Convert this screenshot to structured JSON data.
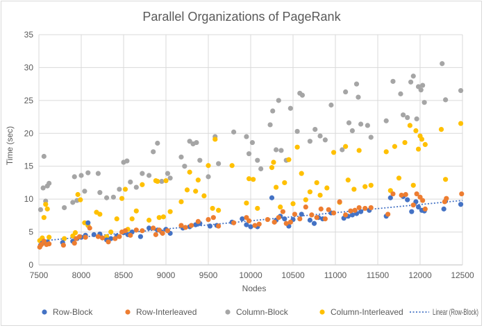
{
  "chart_data": {
    "type": "scatter",
    "title": "Parallel Organizations of PageRank",
    "xlabel": "Nodes",
    "ylabel": "Time (sec)",
    "xlim": [
      7500,
      12500
    ],
    "ylim": [
      0,
      35
    ],
    "xticks": [
      7500,
      8000,
      8500,
      9000,
      9500,
      10000,
      10500,
      11000,
      11500,
      12000,
      12500
    ],
    "yticks": [
      0,
      5,
      10,
      15,
      20,
      25,
      30,
      35
    ],
    "grid": true,
    "legend_position": "bottom",
    "colors": {
      "row_block": "#4472c4",
      "row_interleaved": "#ed7d31",
      "column_block": "#a5a5a5",
      "column_interleaved": "#ffc000",
      "trendline": "#4472c4"
    },
    "series": [
      {
        "name": "Row-Block",
        "points": [
          [
            7520,
            3.0
          ],
          [
            7540,
            3.3
          ],
          [
            7580,
            3.4
          ],
          [
            7600,
            3.5
          ],
          [
            7780,
            3.4
          ],
          [
            7900,
            3.6
          ],
          [
            7950,
            4.0
          ],
          [
            8000,
            4.2
          ],
          [
            8050,
            4.5
          ],
          [
            8080,
            6.4
          ],
          [
            8150,
            4.6
          ],
          [
            8220,
            4.7
          ],
          [
            8300,
            3.8
          ],
          [
            8350,
            4.0
          ],
          [
            8420,
            4.4
          ],
          [
            8500,
            4.9
          ],
          [
            8550,
            4.6
          ],
          [
            8600,
            5.0
          ],
          [
            8700,
            4.3
          ],
          [
            8800,
            5.6
          ],
          [
            8900,
            5.3
          ],
          [
            8950,
            5.0
          ],
          [
            9000,
            5.4
          ],
          [
            9050,
            4.8
          ],
          [
            9200,
            5.6
          ],
          [
            9280,
            5.8
          ],
          [
            9350,
            6.1
          ],
          [
            9400,
            6.3
          ],
          [
            9520,
            5.9
          ],
          [
            9600,
            6.0
          ],
          [
            9780,
            6.5
          ],
          [
            9900,
            7.0
          ],
          [
            9950,
            6.1
          ],
          [
            10000,
            5.8
          ],
          [
            10080,
            5.8
          ],
          [
            10250,
            10.2
          ],
          [
            10300,
            6.8
          ],
          [
            10350,
            7.4
          ],
          [
            10400,
            7.0
          ],
          [
            10450,
            5.9
          ],
          [
            10500,
            6.9
          ],
          [
            10600,
            7.7
          ],
          [
            10700,
            6.8
          ],
          [
            10750,
            6.3
          ],
          [
            10800,
            7.2
          ],
          [
            10850,
            7.0
          ],
          [
            10950,
            7.9
          ],
          [
            11100,
            7.1
          ],
          [
            11150,
            7.4
          ],
          [
            11200,
            7.6
          ],
          [
            11250,
            7.8
          ],
          [
            11300,
            8.1
          ],
          [
            11400,
            8.3
          ],
          [
            11600,
            7.4
          ],
          [
            11650,
            10.2
          ],
          [
            11800,
            10.4
          ],
          [
            11850,
            9.9
          ],
          [
            11900,
            8.1
          ],
          [
            11950,
            9.6
          ],
          [
            11980,
            8.8
          ],
          [
            12020,
            8.3
          ],
          [
            12050,
            8.2
          ],
          [
            12280,
            8.5
          ],
          [
            12300,
            9.7
          ],
          [
            12480,
            9.2
          ]
        ]
      },
      {
        "name": "Row-Interleaved",
        "points": [
          [
            7510,
            2.7
          ],
          [
            7530,
            3.1
          ],
          [
            7560,
            3.6
          ],
          [
            7590,
            3.1
          ],
          [
            7620,
            3.2
          ],
          [
            7790,
            3.0
          ],
          [
            7920,
            3.3
          ],
          [
            7940,
            4.0
          ],
          [
            7980,
            4.3
          ],
          [
            8050,
            4.2
          ],
          [
            8100,
            5.6
          ],
          [
            8200,
            4.3
          ],
          [
            8250,
            4.1
          ],
          [
            8320,
            3.5
          ],
          [
            8400,
            4.0
          ],
          [
            8450,
            4.3
          ],
          [
            8480,
            5.0
          ],
          [
            8520,
            5.2
          ],
          [
            8580,
            4.5
          ],
          [
            8650,
            5.3
          ],
          [
            8720,
            5.2
          ],
          [
            8850,
            5.6
          ],
          [
            8880,
            4.6
          ],
          [
            8920,
            5.3
          ],
          [
            8960,
            4.8
          ],
          [
            9020,
            5.2
          ],
          [
            9180,
            6.0
          ],
          [
            9230,
            5.7
          ],
          [
            9300,
            6.0
          ],
          [
            9380,
            6.6
          ],
          [
            9500,
            6.9
          ],
          [
            9560,
            7.2
          ],
          [
            9620,
            5.9
          ],
          [
            9800,
            6.4
          ],
          [
            9950,
            7.2
          ],
          [
            9980,
            6.7
          ],
          [
            10050,
            6.0
          ],
          [
            10100,
            6.2
          ],
          [
            10200,
            6.9
          ],
          [
            10280,
            6.5
          ],
          [
            10330,
            7.2
          ],
          [
            10380,
            8.1
          ],
          [
            10420,
            6.3
          ],
          [
            10470,
            6.5
          ],
          [
            10520,
            7.7
          ],
          [
            10580,
            7.0
          ],
          [
            10650,
            8.8
          ],
          [
            10720,
            7.6
          ],
          [
            10780,
            7.2
          ],
          [
            10830,
            8.5
          ],
          [
            10880,
            7.0
          ],
          [
            10920,
            8.4
          ],
          [
            10980,
            7.9
          ],
          [
            11050,
            9.6
          ],
          [
            11120,
            7.6
          ],
          [
            11180,
            8.2
          ],
          [
            11230,
            8.3
          ],
          [
            11280,
            8.7
          ],
          [
            11350,
            8.6
          ],
          [
            11420,
            8.7
          ],
          [
            11620,
            7.7
          ],
          [
            11680,
            10.8
          ],
          [
            11780,
            10.6
          ],
          [
            11830,
            10.7
          ],
          [
            11920,
            9.1
          ],
          [
            11960,
            10.8
          ],
          [
            12000,
            10.3
          ],
          [
            12030,
            9.8
          ],
          [
            12060,
            8.5
          ],
          [
            12290,
            9.6
          ],
          [
            12310,
            10.1
          ],
          [
            12490,
            10.8
          ]
        ]
      },
      {
        "name": "Column-Block",
        "points": [
          [
            7520,
            8.4
          ],
          [
            7550,
            11.7
          ],
          [
            7560,
            16.5
          ],
          [
            7580,
            9.7
          ],
          [
            7600,
            12.0
          ],
          [
            7620,
            12.4
          ],
          [
            7800,
            8.7
          ],
          [
            7900,
            9.5
          ],
          [
            7920,
            13.4
          ],
          [
            7950,
            9.8
          ],
          [
            8000,
            13.6
          ],
          [
            8040,
            11.2
          ],
          [
            8080,
            14.0
          ],
          [
            8200,
            13.9
          ],
          [
            8220,
            11.0
          ],
          [
            8300,
            10.2
          ],
          [
            8380,
            10.3
          ],
          [
            8450,
            11.5
          ],
          [
            8500,
            15.6
          ],
          [
            8540,
            15.8
          ],
          [
            8580,
            12.6
          ],
          [
            8650,
            11.8
          ],
          [
            8720,
            13.9
          ],
          [
            8800,
            13.6
          ],
          [
            8850,
            17.2
          ],
          [
            8900,
            18.5
          ],
          [
            8950,
            12.7
          ],
          [
            9020,
            13.9
          ],
          [
            9050,
            13.2
          ],
          [
            9180,
            16.4
          ],
          [
            9220,
            15.0
          ],
          [
            9280,
            18.8
          ],
          [
            9320,
            18.4
          ],
          [
            9360,
            18.6
          ],
          [
            9400,
            15.9
          ],
          [
            9500,
            13.4
          ],
          [
            9580,
            19.5
          ],
          [
            9620,
            15.4
          ],
          [
            9800,
            20.2
          ],
          [
            9950,
            19.5
          ],
          [
            9980,
            16.9
          ],
          [
            10020,
            18.6
          ],
          [
            10080,
            15.9
          ],
          [
            10120,
            14.6
          ],
          [
            10230,
            21.3
          ],
          [
            10260,
            23.4
          ],
          [
            10300,
            17.5
          ],
          [
            10330,
            25.0
          ],
          [
            10360,
            17.4
          ],
          [
            10420,
            15.9
          ],
          [
            10470,
            23.8
          ],
          [
            10550,
            20.3
          ],
          [
            10580,
            26.1
          ],
          [
            10610,
            25.8
          ],
          [
            10700,
            18.8
          ],
          [
            10760,
            20.6
          ],
          [
            10820,
            19.6
          ],
          [
            10880,
            19.0
          ],
          [
            10950,
            24.3
          ],
          [
            11080,
            17.5
          ],
          [
            11120,
            26.3
          ],
          [
            11160,
            21.6
          ],
          [
            11200,
            20.4
          ],
          [
            11250,
            27.5
          ],
          [
            11270,
            25.5
          ],
          [
            11300,
            21.4
          ],
          [
            11380,
            21.2
          ],
          [
            11420,
            19.4
          ],
          [
            11600,
            21.9
          ],
          [
            11680,
            27.9
          ],
          [
            11770,
            26.0
          ],
          [
            11800,
            22.8
          ],
          [
            11850,
            22.4
          ],
          [
            11890,
            27.8
          ],
          [
            11920,
            28.7
          ],
          [
            11960,
            22.2
          ],
          [
            11980,
            27.1
          ],
          [
            12010,
            26.6
          ],
          [
            12030,
            27.3
          ],
          [
            12050,
            24.7
          ],
          [
            12260,
            30.6
          ],
          [
            12300,
            25.1
          ],
          [
            12480,
            26.5
          ]
        ]
      },
      {
        "name": "Column-Interleaved",
        "points": [
          [
            7510,
            3.7
          ],
          [
            7540,
            4.1
          ],
          [
            7560,
            7.2
          ],
          [
            7580,
            9.2
          ],
          [
            7600,
            8.5
          ],
          [
            7620,
            4.2
          ],
          [
            7800,
            4.0
          ],
          [
            7900,
            4.4
          ],
          [
            7930,
            4.9
          ],
          [
            7960,
            10.7
          ],
          [
            7990,
            9.9
          ],
          [
            8040,
            6.4
          ],
          [
            8080,
            6.0
          ],
          [
            8180,
            8.0
          ],
          [
            8220,
            7.7
          ],
          [
            8300,
            4.3
          ],
          [
            8350,
            5.0
          ],
          [
            8420,
            7.0
          ],
          [
            8480,
            10.1
          ],
          [
            8520,
            11.5
          ],
          [
            8550,
            5.4
          ],
          [
            8600,
            7.0
          ],
          [
            8650,
            8.2
          ],
          [
            8720,
            12.2
          ],
          [
            8800,
            6.8
          ],
          [
            8880,
            12.8
          ],
          [
            8900,
            12.7
          ],
          [
            8920,
            7.2
          ],
          [
            8970,
            7.3
          ],
          [
            9000,
            12.8
          ],
          [
            9050,
            8.1
          ],
          [
            9180,
            9.6
          ],
          [
            9250,
            11.4
          ],
          [
            9280,
            14.1
          ],
          [
            9350,
            11.2
          ],
          [
            9380,
            12.9
          ],
          [
            9450,
            10.5
          ],
          [
            9500,
            15.1
          ],
          [
            9550,
            8.6
          ],
          [
            9580,
            19.1
          ],
          [
            9620,
            8.3
          ],
          [
            9780,
            15.1
          ],
          [
            9950,
            9.4
          ],
          [
            9980,
            13.1
          ],
          [
            10030,
            13.0
          ],
          [
            10080,
            8.6
          ],
          [
            10250,
            14.8
          ],
          [
            10270,
            15.6
          ],
          [
            10300,
            11.8
          ],
          [
            10350,
            8.8
          ],
          [
            10400,
            12.5
          ],
          [
            10450,
            16.0
          ],
          [
            10500,
            9.3
          ],
          [
            10550,
            17.9
          ],
          [
            10600,
            13.9
          ],
          [
            10650,
            9.9
          ],
          [
            10700,
            11.1
          ],
          [
            10780,
            12.5
          ],
          [
            10820,
            10.6
          ],
          [
            10900,
            11.7
          ],
          [
            10980,
            17.1
          ],
          [
            11050,
            9.5
          ],
          [
            11120,
            18.0
          ],
          [
            11150,
            12.9
          ],
          [
            11220,
            11.5
          ],
          [
            11280,
            17.4
          ],
          [
            11350,
            11.9
          ],
          [
            11420,
            12.1
          ],
          [
            11600,
            17.2
          ],
          [
            11650,
            11.3
          ],
          [
            11700,
            18.0
          ],
          [
            11750,
            13.2
          ],
          [
            11820,
            18.6
          ],
          [
            11880,
            21.2
          ],
          [
            11920,
            12.1
          ],
          [
            11950,
            20.4
          ],
          [
            11980,
            17.6
          ],
          [
            12000,
            19.6
          ],
          [
            12020,
            19.1
          ],
          [
            12060,
            18.3
          ],
          [
            12250,
            20.6
          ],
          [
            12300,
            13.0
          ],
          [
            12480,
            21.5
          ]
        ]
      }
    ],
    "trendline": {
      "name": "Linear (Row-Block)",
      "of_series": "Row-Block",
      "x": [
        7500,
        12500
      ],
      "y": [
        3.6,
        9.8
      ]
    }
  }
}
